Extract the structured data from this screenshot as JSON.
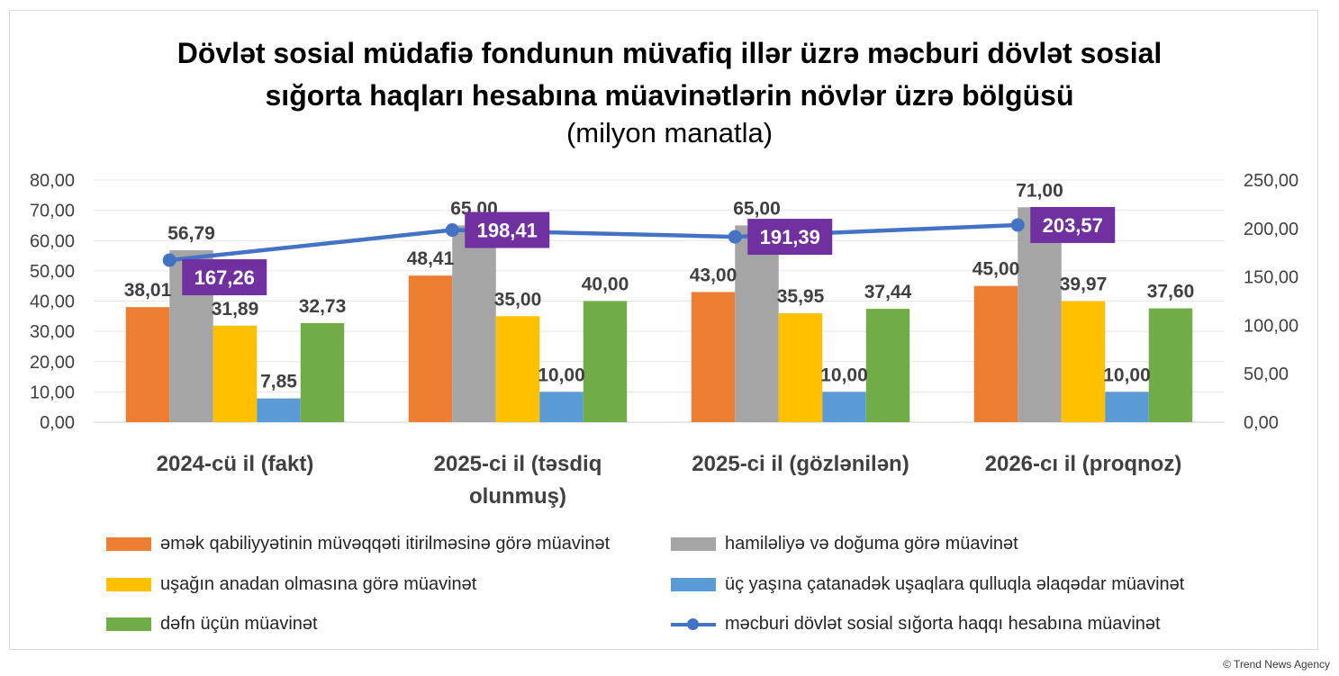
{
  "title_line1": "Dövlət sosial müdafiə fondunun müvafiq illər üzrə məcburi dövlət sosial",
  "title_line2": "sığorta haqları hesabına müavinətlərin növlər üzrə bölgüsü",
  "subtitle": "(milyon manatla)",
  "credit": "© Trend News Agency",
  "chart_data": {
    "type": "bar",
    "title": "Dövlət sosial müdafiə fondunun müvafiq illər üzrə məcburi dövlət sosial sığorta haqları hesabına müavinətlərin növlər üzrə bölgüsü",
    "subtitle": "(milyon manatla)",
    "categories": [
      [
        "2024-cü il (fakt)"
      ],
      [
        "2025-ci il (təsdiq",
        "olunmuş)"
      ],
      [
        "2025-ci il (gözlənilən)"
      ],
      [
        "2026-cı il (proqnoz)"
      ]
    ],
    "y_left": {
      "min": 0,
      "max": 80,
      "step": 10,
      "tick_labels": [
        "0,00",
        "10,00",
        "20,00",
        "30,00",
        "40,00",
        "50,00",
        "60,00",
        "70,00",
        "80,00"
      ]
    },
    "y_right": {
      "min": 0,
      "max": 250,
      "step": 50,
      "tick_labels": [
        "0,00",
        "50,00",
        "100,00",
        "150,00",
        "200,00",
        "250,00"
      ]
    },
    "series": [
      {
        "name": "əmək qabiliyyətinin müvəqqəti itirilməsinə görə müavinət",
        "kind": "bar",
        "axis": "left",
        "color": "#ED7D31",
        "values": [
          38.01,
          48.41,
          43.0,
          45.0
        ],
        "labels": [
          "38,01",
          "48,41",
          "43,00",
          "45,00"
        ]
      },
      {
        "name": "hamiləliyə və doğuma görə müavinət",
        "kind": "bar",
        "axis": "left",
        "color": "#A5A5A5",
        "values": [
          56.79,
          65.0,
          65.0,
          71.0
        ],
        "labels": [
          "56,79",
          "65,00",
          "65,00",
          "71,00"
        ]
      },
      {
        "name": "uşağın anadan olmasına görə müavinət",
        "kind": "bar",
        "axis": "left",
        "color": "#FFC000",
        "values": [
          31.89,
          35.0,
          35.95,
          39.97
        ],
        "labels": [
          "31,89",
          "35,00",
          "35,95",
          "39,97"
        ]
      },
      {
        "name": "üç yaşına çatanadək uşaqlara qulluqla əlaqədar müavinət",
        "kind": "bar",
        "axis": "left",
        "color": "#5B9BD5",
        "values": [
          7.85,
          10.0,
          10.0,
          10.0
        ],
        "labels": [
          "7,85",
          "10,00",
          "10,00",
          "10,00"
        ]
      },
      {
        "name": "dəfn üçün müavinət",
        "kind": "bar",
        "axis": "left",
        "color": "#70AD47",
        "values": [
          32.73,
          40.0,
          37.44,
          37.6
        ],
        "labels": [
          "32,73",
          "40,00",
          "37,44",
          "37,60"
        ]
      },
      {
        "name": "məcburi dövlət sosial sığorta haqqı hesabına müavinət",
        "kind": "line",
        "axis": "right",
        "color": "#4472C4",
        "label_bg": "#7030A0",
        "values": [
          167.26,
          198.41,
          191.39,
          203.57
        ],
        "labels": [
          "167,26",
          "198,41",
          "191,39",
          "203,57"
        ]
      }
    ],
    "legend_position": "bottom"
  }
}
